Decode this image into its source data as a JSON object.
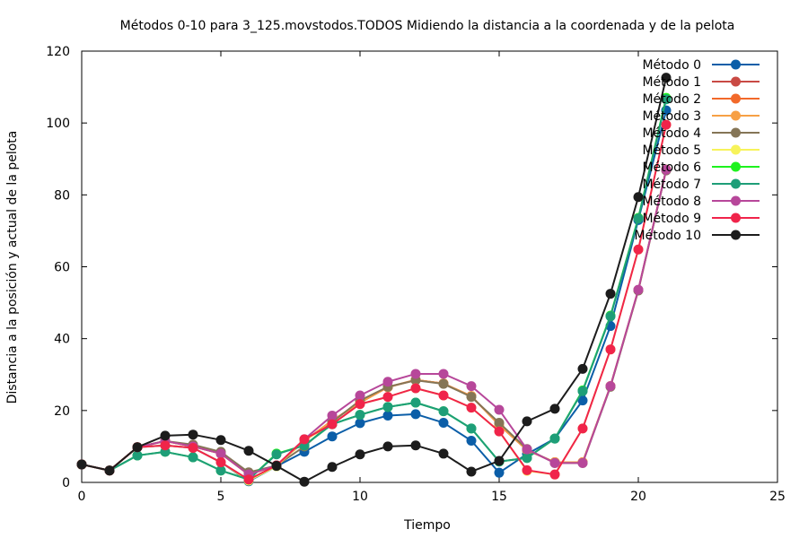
{
  "chart_data": {
    "type": "line",
    "title": "Métodos 0-10 para 3_125.movstodos.TODOS Midiendo la distancia a la coordenada y de la pelota",
    "xlabel": "Tiempo",
    "ylabel": "Distancia a la posición y actual de la pelota",
    "xlim": [
      0,
      25
    ],
    "ylim": [
      0,
      120
    ],
    "x_ticks": [
      "0",
      "5",
      "10",
      "15",
      "20",
      "25"
    ],
    "y_ticks": [
      "0",
      "20",
      "40",
      "60",
      "80",
      "100",
      "120"
    ],
    "grid": false,
    "legend_position": "top-right",
    "x": [
      0,
      1,
      2,
      3,
      4,
      5,
      6,
      7,
      8,
      9,
      10,
      11,
      12,
      13,
      14,
      15,
      16,
      17,
      18,
      19,
      20,
      21
    ],
    "series": [
      {
        "name": "Método 0",
        "color": "#0b5ea8",
        "values": [
          5,
          3.3,
          9.8,
          10.3,
          9.6,
          5.6,
          0.3,
          4.5,
          8.5,
          12.8,
          16.5,
          18.6,
          19,
          16.6,
          11.6,
          2.7,
          7.9,
          12.2,
          22.8,
          43.5,
          73,
          103.5
        ]
      },
      {
        "name": "Método 1",
        "color": "#c94a44",
        "values": [
          5,
          3.3,
          9.8,
          11.5,
          10,
          8,
          2.2,
          4.7,
          11.5,
          17.2,
          22.2,
          26.5,
          28.5,
          27.5,
          24,
          16,
          9,
          5.6,
          5.6,
          26.8,
          53.5,
          87
        ]
      },
      {
        "name": "Método 2",
        "color": "#f2692a",
        "values": [
          5,
          3.3,
          9.8,
          11.5,
          10,
          8,
          2.2,
          4.7,
          11.5,
          17.2,
          22.2,
          26.5,
          28.5,
          27.5,
          24,
          16,
          9,
          5.6,
          5.6,
          26.8,
          53.5,
          87
        ]
      },
      {
        "name": "Método 3",
        "color": "#f7a045",
        "values": [
          5,
          3.3,
          9.8,
          11.5,
          10,
          8,
          2.2,
          4.7,
          11.5,
          17.2,
          22.2,
          26.5,
          28.5,
          27.5,
          24,
          16,
          9,
          5.6,
          5.6,
          26.8,
          53.5,
          87
        ]
      },
      {
        "name": "Método 4",
        "color": "#857556",
        "values": [
          5,
          3.3,
          9.8,
          11.5,
          10.5,
          8.5,
          2.8,
          4.7,
          10,
          16.8,
          22.8,
          26.6,
          28.4,
          27.4,
          23.8,
          16.6,
          9.3,
          5.4,
          5.4,
          26.6,
          53.4,
          86.8
        ]
      },
      {
        "name": "Método 5",
        "color": "#f7f35a",
        "values": [
          5,
          3.3,
          9.8,
          10.3,
          9.6,
          5.6,
          0.5,
          4.5,
          11.8,
          16.2,
          21.8,
          23.8,
          26.2,
          24.2,
          20.8,
          14.2,
          3.2,
          2.2,
          15,
          37,
          64.8,
          99.5
        ]
      },
      {
        "name": "Método 6",
        "color": "#1ef21e",
        "values": [
          5,
          3.3,
          7.5,
          8.5,
          7,
          3.3,
          0.8,
          8,
          10.3,
          16.2,
          18.8,
          21,
          22.2,
          19.8,
          15,
          5.8,
          6.8,
          12.2,
          25.6,
          46.4,
          73.6,
          107
        ]
      },
      {
        "name": "Método 7",
        "color": "#1e9e78",
        "values": [
          5,
          3.3,
          7.5,
          8.5,
          7,
          3.3,
          0.8,
          7.8,
          10.3,
          16.2,
          18.8,
          21,
          22.2,
          19.8,
          15,
          5.8,
          6.8,
          12.2,
          25.4,
          46.2,
          73.4,
          106.6
        ]
      },
      {
        "name": "Método 8",
        "color": "#b7479a",
        "values": [
          5,
          3.3,
          9.8,
          11.5,
          10,
          8,
          2.2,
          4.7,
          12,
          18.6,
          24.2,
          28,
          30.2,
          30.2,
          26.8,
          20.2,
          9.2,
          5.4,
          5.4,
          26.8,
          53.6,
          87
        ]
      },
      {
        "name": "Método 9",
        "color": "#f0244a",
        "values": [
          5,
          3.3,
          9.8,
          10.3,
          9.6,
          5.6,
          0.8,
          4.7,
          12,
          16.2,
          21.8,
          23.8,
          26.2,
          24.2,
          20.8,
          14.2,
          3.4,
          2.2,
          15,
          37,
          64.8,
          99.5
        ]
      },
      {
        "name": "Método 10",
        "color": "#1c1c1c",
        "values": [
          5,
          3.3,
          9.8,
          13,
          13.3,
          11.8,
          8.8,
          4.6,
          0.2,
          4.3,
          7.8,
          10,
          10.3,
          8,
          3,
          6,
          17,
          20.5,
          31.6,
          52.5,
          79.4,
          112.6
        ]
      }
    ]
  }
}
